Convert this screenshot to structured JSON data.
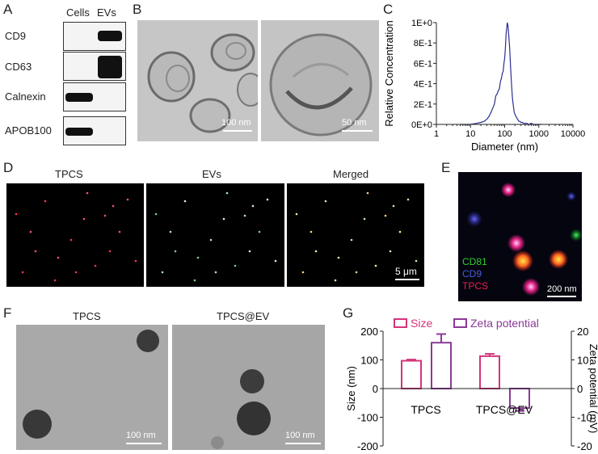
{
  "panels": {
    "A": "A",
    "B": "B",
    "C": "C",
    "D": "D",
    "E": "E",
    "F": "F",
    "G": "G"
  },
  "panelA": {
    "col_cells": "Cells",
    "col_evs": "EVs",
    "rows": [
      {
        "label": "CD9"
      },
      {
        "label": "CD63"
      },
      {
        "label": "Calnexin"
      },
      {
        "label": "APOB100"
      }
    ]
  },
  "panelB": {
    "scale1": "100 nm",
    "scale2": "50 nm"
  },
  "panelD": {
    "titles": [
      "TPCS",
      "EVs",
      "Merged"
    ],
    "scale": "5 μm"
  },
  "panelE": {
    "legend": [
      "CD81",
      "CD9",
      "TPCS"
    ],
    "scale": "200 nm",
    "legend_colors": [
      "#2fcf2f",
      "#4a5ad8",
      "#e8204a"
    ]
  },
  "panelF": {
    "titles": [
      "TPCS",
      "TPCS@EV"
    ],
    "scale": "100 nm"
  },
  "chart_data": [
    {
      "type": "line",
      "xlabel": "Diameter (nm)",
      "ylabel": "Relative Concentration",
      "xscale": "log",
      "xlim": [
        1,
        10000
      ],
      "ylim": [
        0,
        1
      ],
      "xticks": [
        "1",
        "10",
        "100",
        "1000",
        "10000"
      ],
      "yticks": [
        "0E+0",
        "2E-1",
        "4E-1",
        "6E-1",
        "8E-1",
        "1E+0"
      ],
      "line_color": "#2a2f8f",
      "x": [
        5,
        10,
        15,
        20,
        25,
        30,
        35,
        40,
        45,
        50,
        55,
        60,
        65,
        70,
        75,
        80,
        85,
        90,
        95,
        100,
        105,
        110,
        115,
        120,
        125,
        130,
        140,
        150,
        160,
        170,
        180,
        190,
        200,
        220,
        240,
        260,
        280,
        300,
        330,
        360,
        400,
        450,
        500,
        600,
        700,
        800,
        1000,
        1200
      ],
      "y": [
        0,
        0.0,
        0.01,
        0.02,
        0.03,
        0.05,
        0.08,
        0.12,
        0.16,
        0.2,
        0.28,
        0.3,
        0.33,
        0.35,
        0.42,
        0.45,
        0.5,
        0.52,
        0.6,
        0.65,
        0.75,
        0.88,
        0.95,
        1.0,
        0.97,
        0.9,
        0.75,
        0.55,
        0.38,
        0.25,
        0.18,
        0.12,
        0.1,
        0.07,
        0.05,
        0.03,
        0.03,
        0.02,
        0.02,
        0.01,
        0.01,
        0.01,
        0.0,
        0.01,
        0.0,
        0.0,
        0.0,
        0.0
      ]
    },
    {
      "type": "bar",
      "categories": [
        "TPCS",
        "TPCS@EV"
      ],
      "series": [
        {
          "name": "Size",
          "axis": "left",
          "values": [
            97,
            113
          ],
          "errors": [
            4,
            8
          ],
          "color": "#d4347a"
        },
        {
          "name": "Zeta potential",
          "axis": "right",
          "values": [
            16,
            -6.8
          ],
          "errors": [
            3,
            1
          ],
          "color": "#8a3a96"
        }
      ],
      "ylabel_left": "Size (nm)",
      "ylabel_right": "Zeta potential (mV)",
      "ylim_left": [
        -200,
        200
      ],
      "ylim_right": [
        -20,
        20
      ],
      "yticks_left": [
        "200",
        "100",
        "0",
        "-100",
        "-200"
      ],
      "yticks_right": [
        "20",
        "10",
        "0",
        "-10",
        "-20"
      ],
      "legend_position": "top"
    }
  ]
}
